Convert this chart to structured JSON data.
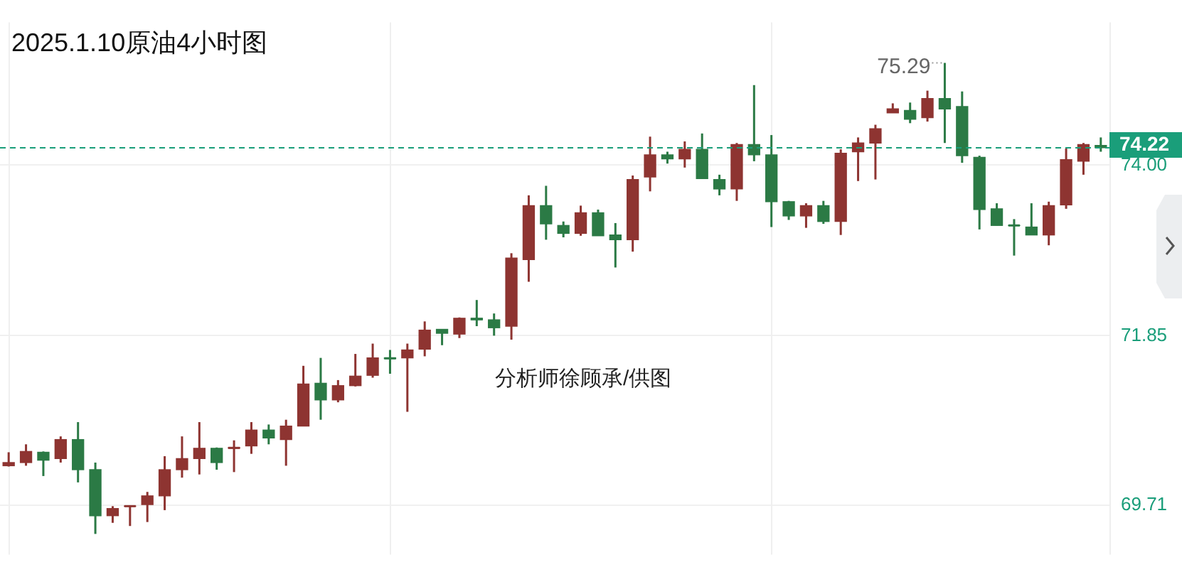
{
  "chart_data": {
    "type": "candlestick",
    "title": "2025.1.10原油4小时图",
    "categories": [
      null,
      null,
      null,
      null,
      null,
      null,
      null,
      null,
      null,
      null,
      null,
      null,
      null,
      null,
      null,
      null,
      null,
      null,
      null,
      null,
      null,
      null,
      null,
      null,
      null,
      null,
      null,
      null,
      null,
      null,
      null,
      null,
      null,
      null,
      null,
      null,
      null,
      null,
      null,
      null,
      null,
      null,
      null,
      null,
      null,
      null,
      null,
      null,
      null,
      null,
      null,
      null,
      null,
      null,
      null,
      null,
      null,
      null,
      null,
      null,
      null,
      null,
      null,
      null
    ],
    "ohlc": [
      [
        70.21,
        70.38,
        70.2,
        70.25
      ],
      [
        70.25,
        70.48,
        70.21,
        70.39
      ],
      [
        70.38,
        70.39,
        70.08,
        70.28
      ],
      [
        70.3,
        70.58,
        70.25,
        70.54
      ],
      [
        70.54,
        70.76,
        70.0,
        70.16
      ],
      [
        70.16,
        70.25,
        69.35,
        69.58
      ],
      [
        69.58,
        69.7,
        69.49,
        69.67
      ],
      [
        69.7,
        69.7,
        69.45,
        69.7
      ],
      [
        69.72,
        69.88,
        69.5,
        69.83
      ],
      [
        69.83,
        70.33,
        69.65,
        70.16
      ],
      [
        70.16,
        70.58,
        70.06,
        70.3
      ],
      [
        70.3,
        70.76,
        70.1,
        70.43
      ],
      [
        70.43,
        70.44,
        70.16,
        70.25
      ],
      [
        70.43,
        70.53,
        70.13,
        70.44
      ],
      [
        70.46,
        70.76,
        70.36,
        70.66
      ],
      [
        70.66,
        70.73,
        70.48,
        70.56
      ],
      [
        70.54,
        70.79,
        70.21,
        70.71
      ],
      [
        70.71,
        71.47,
        70.71,
        71.24
      ],
      [
        71.25,
        71.57,
        70.79,
        71.04
      ],
      [
        71.04,
        71.29,
        71.01,
        71.22
      ],
      [
        71.22,
        71.62,
        71.21,
        71.34
      ],
      [
        71.35,
        71.75,
        71.32,
        71.57
      ],
      [
        71.57,
        71.67,
        71.37,
        71.56
      ],
      [
        71.57,
        71.75,
        70.89,
        71.67
      ],
      [
        71.68,
        72.03,
        71.59,
        71.92
      ],
      [
        71.93,
        71.93,
        71.73,
        71.88
      ],
      [
        71.87,
        72.08,
        71.82,
        72.07
      ],
      [
        72.07,
        72.3,
        71.97,
        72.05
      ],
      [
        72.05,
        72.13,
        71.85,
        71.95
      ],
      [
        71.97,
        72.89,
        71.8,
        72.83
      ],
      [
        72.81,
        73.62,
        72.53,
        73.49
      ],
      [
        73.49,
        73.74,
        73.06,
        73.26
      ],
      [
        73.24,
        73.29,
        73.09,
        73.14
      ],
      [
        73.14,
        73.49,
        73.11,
        73.4
      ],
      [
        73.4,
        73.44,
        73.11,
        73.11
      ],
      [
        73.12,
        73.27,
        72.71,
        73.06
      ],
      [
        73.06,
        73.87,
        72.91,
        73.82
      ],
      [
        73.85,
        74.36,
        73.67,
        74.13
      ],
      [
        74.13,
        74.17,
        74.02,
        74.08
      ],
      [
        74.08,
        74.3,
        73.97,
        74.2
      ],
      [
        74.2,
        74.4,
        73.83,
        73.83
      ],
      [
        73.82,
        73.88,
        73.62,
        73.7
      ],
      [
        73.7,
        74.28,
        73.55,
        74.26
      ],
      [
        74.26,
        75.01,
        74.05,
        74.13
      ],
      [
        74.13,
        74.38,
        73.22,
        73.54
      ],
      [
        73.54,
        73.55,
        73.31,
        73.36
      ],
      [
        73.36,
        73.52,
        73.21,
        73.49
      ],
      [
        73.49,
        73.55,
        73.26,
        73.29
      ],
      [
        73.29,
        74.2,
        73.12,
        74.15
      ],
      [
        74.17,
        74.35,
        73.8,
        74.28
      ],
      [
        74.28,
        74.51,
        73.82,
        74.46
      ],
      [
        74.66,
        74.78,
        74.66,
        74.71
      ],
      [
        74.69,
        74.79,
        74.53,
        74.58
      ],
      [
        74.6,
        74.94,
        74.55,
        74.84
      ],
      [
        74.84,
        75.29,
        74.28,
        74.71
      ],
      [
        74.74,
        74.93,
        74.03,
        74.12
      ],
      [
        74.1,
        74.12,
        73.19,
        73.44
      ],
      [
        73.45,
        73.52,
        73.24,
        73.24
      ],
      [
        73.24,
        73.32,
        72.86,
        73.24
      ],
      [
        73.22,
        73.52,
        73.12,
        73.12
      ],
      [
        73.12,
        73.54,
        72.99,
        73.49
      ],
      [
        73.5,
        74.21,
        73.45,
        74.07
      ],
      [
        74.05,
        74.28,
        73.88,
        74.26
      ],
      [
        74.25,
        74.35,
        74.17,
        74.22
      ]
    ],
    "colors": [
      "#8e3431",
      "#8e3431",
      "#2b7a45",
      "#8e3431",
      "#2b7a45",
      "#2b7a45",
      "#8e3431",
      "#8e3431",
      "#8e3431",
      "#8e3431",
      "#8e3431",
      "#8e3431",
      "#2b7a45",
      "#8e3431",
      "#8e3431",
      "#2b7a45",
      "#8e3431",
      "#8e3431",
      "#2b7a45",
      "#8e3431",
      "#8e3431",
      "#8e3431",
      "#2b7a45",
      "#8e3431",
      "#8e3431",
      "#2b7a45",
      "#8e3431",
      "#2b7a45",
      "#2b7a45",
      "#8e3431",
      "#8e3431",
      "#2b7a45",
      "#2b7a45",
      "#8e3431",
      "#2b7a45",
      "#2b7a45",
      "#8e3431",
      "#8e3431",
      "#2b7a45",
      "#8e3431",
      "#2b7a45",
      "#2b7a45",
      "#8e3431",
      "#2b7a45",
      "#2b7a45",
      "#2b7a45",
      "#8e3431",
      "#2b7a45",
      "#8e3431",
      "#8e3431",
      "#8e3431",
      "#8e3431",
      "#2b7a45",
      "#8e3431",
      "#2b7a45",
      "#2b7a45",
      "#2b7a45",
      "#2b7a45",
      "#2b7a45",
      "#2b7a45",
      "#8e3431",
      "#8e3431",
      "#8e3431",
      "#2b7a45"
    ],
    "ylim": [
      69.09,
      75.8
    ],
    "yticks": [
      {
        "value": 69.71,
        "label": "69.71"
      },
      {
        "value": 71.85,
        "label": "71.85"
      },
      {
        "value": 74,
        "label": "74.00"
      }
    ],
    "grid": true,
    "ref_lines": [
      {
        "axis": "y",
        "value": 74.22,
        "label": "74.22",
        "color": "#1a9e7a",
        "line_style": "dashed"
      }
    ],
    "annotations": [
      "分析师徐顾承/供图",
      "75.29"
    ]
  }
}
